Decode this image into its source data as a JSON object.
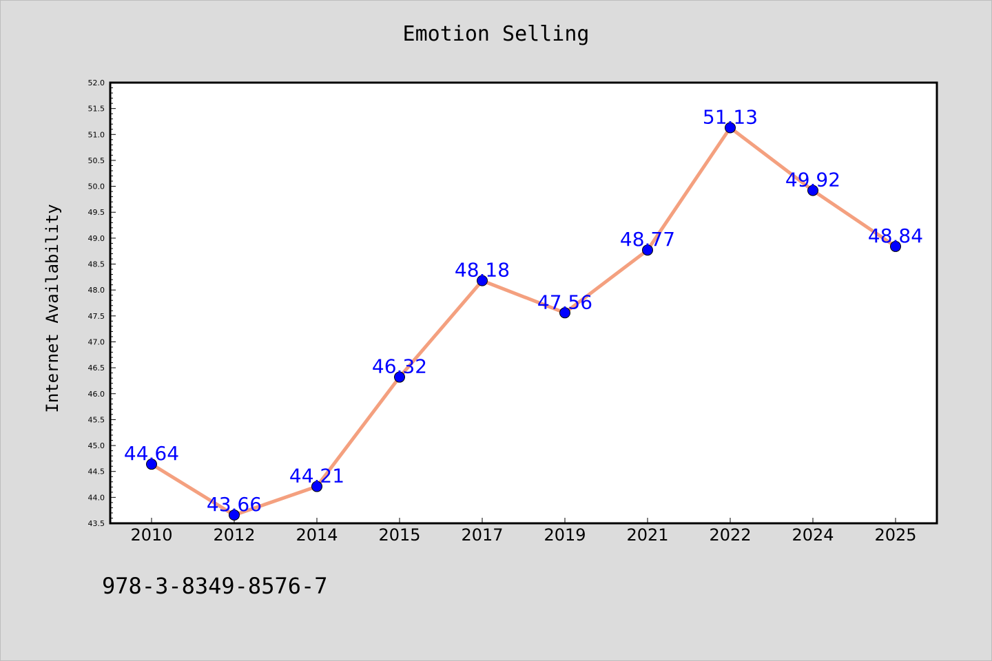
{
  "chart_data": {
    "type": "line",
    "title": "Emotion Selling",
    "xlabel": "",
    "ylabel": "Internet Availability",
    "categories": [
      "2010",
      "2012",
      "2014",
      "2015",
      "2017",
      "2019",
      "2021",
      "2022",
      "2024",
      "2025"
    ],
    "series": [
      {
        "values": [
          44.64,
          43.66,
          44.21,
          46.32,
          48.18,
          47.56,
          48.77,
          51.13,
          49.92,
          48.84
        ]
      }
    ],
    "data_labels": [
      "44.64",
      "43.66",
      "44.21",
      "46.32",
      "48.18",
      "47.56",
      "48.77",
      "51.13",
      "49.92",
      "48.84"
    ],
    "ylim": [
      43.5,
      52.0
    ],
    "yticks": [
      "43.5",
      "44.0",
      "44.5",
      "45.0",
      "45.5",
      "46.0",
      "46.5",
      "47.0",
      "47.5",
      "48.0",
      "48.5",
      "49.0",
      "49.5",
      "50.0",
      "50.5",
      "51.0",
      "51.5",
      "52.0"
    ],
    "grid": false,
    "colors": {
      "line": "#f4a07f",
      "marker": "#0000ff",
      "label": "#0000ff"
    }
  },
  "footer_text": "978-3-8349-8576-7"
}
